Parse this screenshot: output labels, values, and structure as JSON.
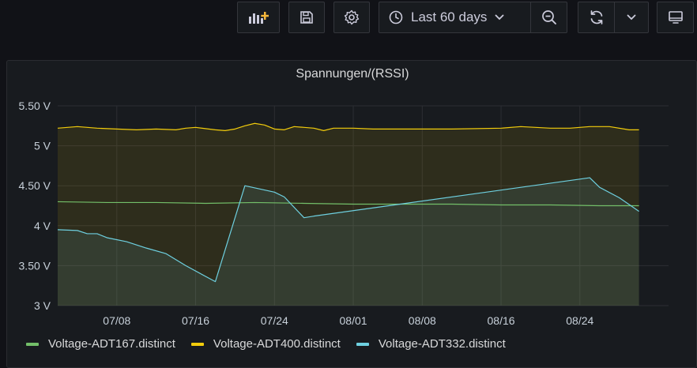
{
  "toolbar": {
    "add_panel_icon": "add-panel-icon",
    "save_icon": "save-icon",
    "settings_icon": "gear-icon",
    "time_range_label": "Last 60 days",
    "zoom_out_icon": "zoom-out-icon",
    "refresh_icon": "refresh-icon",
    "tv_mode_icon": "monitor-icon"
  },
  "panel": {
    "title": "Spannungen/(RSSI)"
  },
  "colors": {
    "accent_add": "#f5b73b",
    "series_ADT167": "#73bf69",
    "series_ADT400": "#f2cc0c",
    "series_ADT332": "#6ed0e0",
    "grid": "#2c2e33"
  },
  "chart_data": {
    "type": "line",
    "title": "Spannungen/(RSSI)",
    "xlabel": "",
    "ylabel": "",
    "x_range_days": [
      0,
      62
    ],
    "ylim": [
      3,
      5.5
    ],
    "y_ticks": [
      {
        "v": 3,
        "label": "3 V"
      },
      {
        "v": 3.5,
        "label": "3.50 V"
      },
      {
        "v": 4,
        "label": "4 V"
      },
      {
        "v": 4.5,
        "label": "4.50 V"
      },
      {
        "v": 5,
        "label": "5 V"
      },
      {
        "v": 5.5,
        "label": "5.50 V"
      }
    ],
    "x_ticks": [
      {
        "d": 6,
        "label": "07/08"
      },
      {
        "d": 14,
        "label": "07/16"
      },
      {
        "d": 22,
        "label": "07/24"
      },
      {
        "d": 30,
        "label": "08/01"
      },
      {
        "d": 37,
        "label": "08/08"
      },
      {
        "d": 45,
        "label": "08/16"
      },
      {
        "d": 53,
        "label": "08/24"
      }
    ],
    "grid": true,
    "legend_position": "bottom-left",
    "series": [
      {
        "name": "Voltage-ADT167.distinct",
        "color": "#73bf69",
        "fill": false,
        "x": [
          0,
          5,
          10,
          15,
          20,
          25,
          30,
          35,
          40,
          45,
          50,
          55,
          59
        ],
        "y": [
          4.3,
          4.29,
          4.29,
          4.28,
          4.29,
          4.28,
          4.27,
          4.27,
          4.27,
          4.26,
          4.26,
          4.25,
          4.25
        ]
      },
      {
        "name": "Voltage-ADT400.distinct",
        "color": "#f2cc0c",
        "fill": true,
        "x": [
          0,
          2,
          4,
          6,
          8,
          10,
          12,
          13,
          14,
          16,
          17,
          18,
          19,
          20,
          21,
          22,
          23,
          24,
          25,
          26,
          27,
          28,
          30,
          32,
          35,
          40,
          45,
          47,
          50,
          52,
          54,
          56,
          58,
          59
        ],
        "y": [
          5.22,
          5.24,
          5.22,
          5.21,
          5.2,
          5.21,
          5.2,
          5.22,
          5.23,
          5.2,
          5.19,
          5.21,
          5.25,
          5.28,
          5.26,
          5.21,
          5.2,
          5.24,
          5.23,
          5.22,
          5.19,
          5.22,
          5.22,
          5.21,
          5.21,
          5.21,
          5.22,
          5.24,
          5.22,
          5.22,
          5.24,
          5.24,
          5.2,
          5.2
        ]
      },
      {
        "name": "Voltage-ADT332.distinct",
        "color": "#6ed0e0",
        "fill": true,
        "x": [
          0,
          2,
          3,
          4,
          5,
          7,
          9,
          11,
          13,
          16,
          19,
          22,
          23,
          25,
          26,
          54,
          55,
          57,
          59
        ],
        "y": [
          3.95,
          3.94,
          3.9,
          3.9,
          3.85,
          3.8,
          3.72,
          3.65,
          3.5,
          3.3,
          4.5,
          4.42,
          4.36,
          4.1,
          4.12,
          4.6,
          4.48,
          4.35,
          4.18
        ]
      }
    ]
  }
}
